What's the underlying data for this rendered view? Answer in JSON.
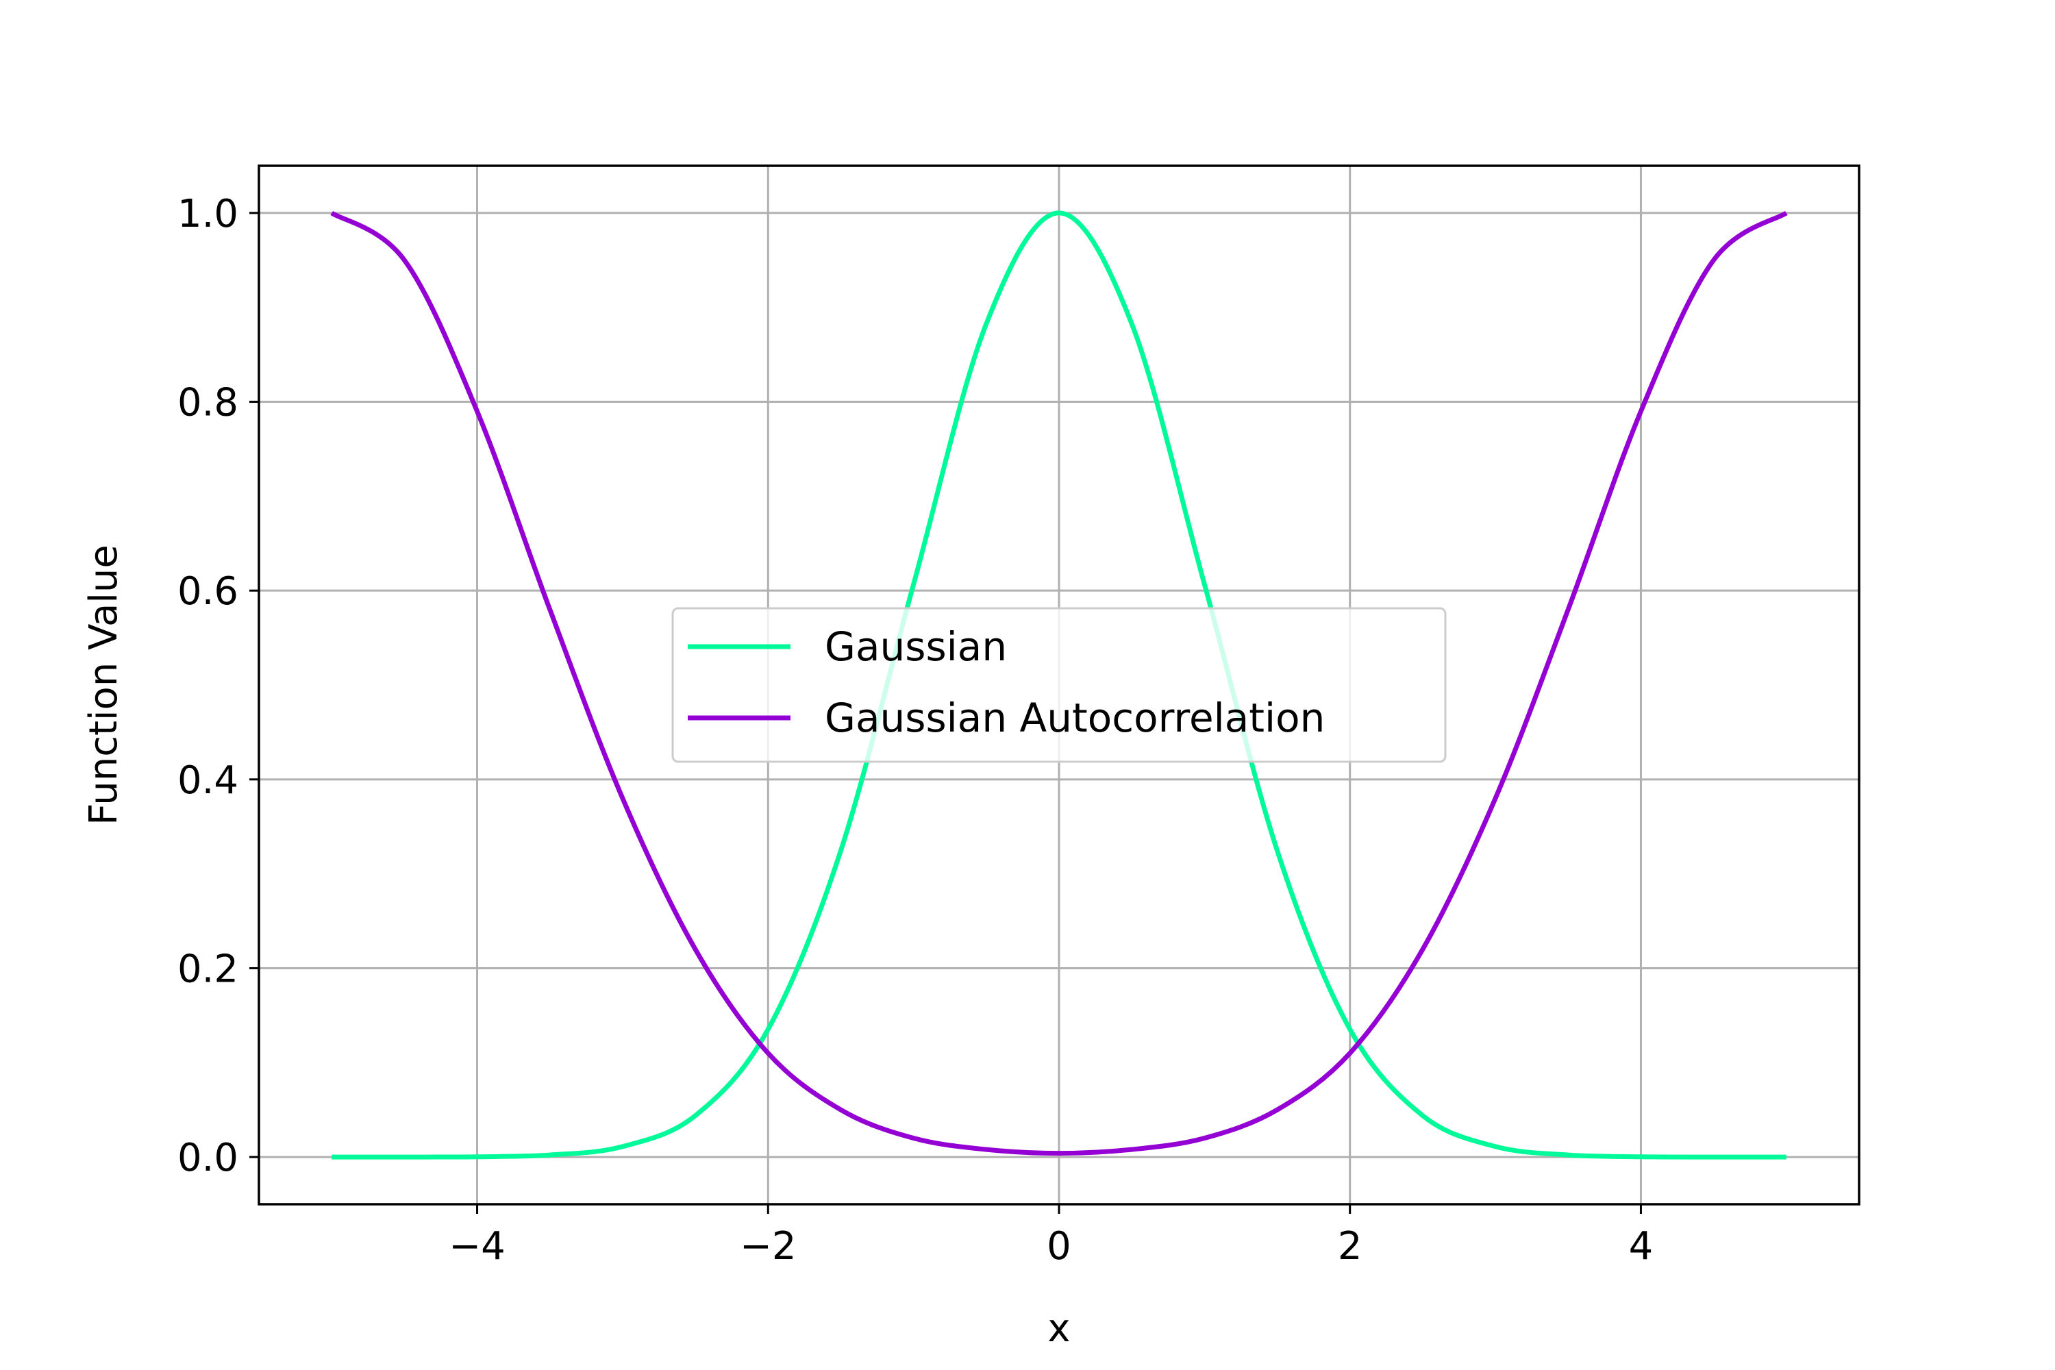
{
  "chart_data": {
    "type": "line",
    "title": "",
    "xlabel": "x",
    "ylabel": "Function Value",
    "xlim": [
      -5.5,
      5.5
    ],
    "ylim": [
      -0.05,
      1.05
    ],
    "xticks": [
      -4,
      -2,
      0,
      2,
      4
    ],
    "xtick_labels": [
      "−4",
      "−2",
      "0",
      "2",
      "4"
    ],
    "yticks": [
      0.0,
      0.2,
      0.4,
      0.6,
      0.8,
      1.0
    ],
    "ytick_labels": [
      "0.0",
      "0.2",
      "0.4",
      "0.6",
      "0.8",
      "1.0"
    ],
    "grid": true,
    "legend_position": "center",
    "x": [
      -5.0,
      -4.5,
      -4.0,
      -3.5,
      -3.0,
      -2.5,
      -2.0,
      -1.5,
      -1.0,
      -0.5,
      0.0,
      0.5,
      1.0,
      1.5,
      2.0,
      2.5,
      3.0,
      3.5,
      4.0,
      4.5,
      5.0
    ],
    "series": [
      {
        "name": "Gaussian",
        "color": "#00FA9A",
        "values": [
          0.0,
          0.0,
          0.0003,
          0.0022,
          0.0111,
          0.0439,
          0.1353,
          0.3247,
          0.6065,
          0.8825,
          1.0,
          0.8825,
          0.6065,
          0.3247,
          0.1353,
          0.0439,
          0.0111,
          0.0022,
          0.0003,
          0.0,
          0.0
        ]
      },
      {
        "name": "Gaussian Autocorrelation",
        "color": "#9400D3",
        "values": [
          1.0,
          0.95,
          0.79,
          0.58,
          0.38,
          0.22,
          0.11,
          0.05,
          0.02,
          0.008,
          0.004,
          0.008,
          0.02,
          0.05,
          0.11,
          0.22,
          0.38,
          0.58,
          0.79,
          0.95,
          1.0
        ]
      }
    ]
  }
}
